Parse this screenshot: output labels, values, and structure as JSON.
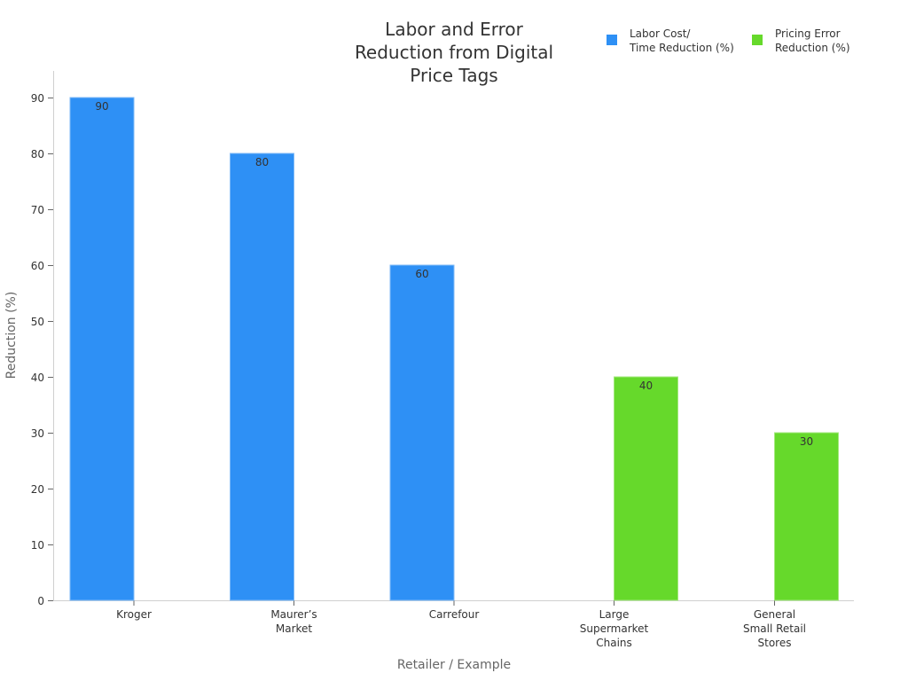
{
  "chart_data": {
    "type": "bar",
    "title": "Labor and Error Reduction from Digital Price Tags",
    "title_lines": [
      "Labor and Error",
      "Reduction from Digital",
      "Price Tags"
    ],
    "xlabel": "Retailer / Example",
    "ylabel": "Reduction (%)",
    "ylim": [
      0,
      95
    ],
    "yticks": [
      0,
      10,
      20,
      30,
      40,
      50,
      60,
      70,
      80,
      90
    ],
    "grid": false,
    "legend_position": "top-right",
    "categories": [
      "Kroger",
      "Maurer's Market",
      "Carrefour",
      "Large Supermarket Chains",
      "General Small Retail Stores"
    ],
    "category_lines": [
      [
        "Kroger"
      ],
      [
        "Maurer’s",
        "Market"
      ],
      [
        "Carrefour"
      ],
      [
        "Large",
        "Supermarket",
        "Chains"
      ],
      [
        "General",
        "Small Retail",
        "Stores"
      ]
    ],
    "series": [
      {
        "name": "Labor Cost/Time Reduction (%)",
        "legend_lines": [
          "Labor Cost/",
          "Time Reduction (%)"
        ],
        "color": "#2e90f5",
        "values": [
          90,
          80,
          60,
          null,
          null
        ]
      },
      {
        "name": "Pricing Error Reduction (%)",
        "legend_lines": [
          "Pricing Error",
          "Reduction (%)"
        ],
        "color": "#66d92b",
        "values": [
          null,
          null,
          null,
          40,
          30
        ]
      }
    ]
  }
}
